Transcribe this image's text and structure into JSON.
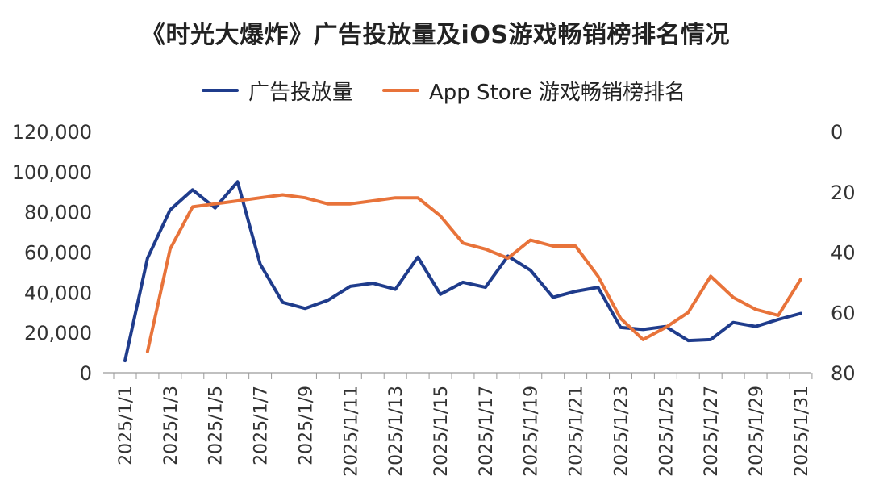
{
  "title": "《时光大爆炸》广告投放量及iOS游戏畅销榜排名情况",
  "legend": [
    {
      "label": "广告投放量",
      "color": "#1F3C8C"
    },
    {
      "label": "App Store 游戏畅销榜排名",
      "color": "#E8733A"
    }
  ],
  "chart_data": {
    "type": "line",
    "title": "《时光大爆炸》广告投放量及iOS游戏畅销榜排名情况",
    "x_labels_shown": [
      "2025/1/1",
      "2025/1/3",
      "2025/1/5",
      "2025/1/7",
      "2025/1/9",
      "2025/1/11",
      "2025/1/13",
      "2025/1/15",
      "2025/1/17",
      "2025/1/19",
      "2025/1/21",
      "2025/1/23",
      "2025/1/25",
      "2025/1/27",
      "2025/1/29",
      "2025/1/31"
    ],
    "y_left": {
      "min": 0,
      "max": 120000,
      "ticks": [
        "120,000",
        "100,000",
        "80,000",
        "60,000",
        "40,000",
        "20,000",
        "0"
      ]
    },
    "y_right": {
      "min": 0,
      "max": 80,
      "inverted": true,
      "ticks": [
        "0",
        "20",
        "40",
        "60",
        "80"
      ]
    },
    "series": [
      {
        "name": "广告投放量",
        "axis": "left",
        "color": "#1F3C8C",
        "values": [
          [
            "2025/1/1",
            6000
          ],
          [
            "2025/1/2",
            57000
          ],
          [
            "2025/1/3",
            81000
          ],
          [
            "2025/1/4",
            91000
          ],
          [
            "2025/1/5",
            82000
          ],
          [
            "2025/1/6",
            95000
          ],
          [
            "2025/1/7",
            54000
          ],
          [
            "2025/1/8",
            35000
          ],
          [
            "2025/1/9",
            32000
          ],
          [
            "2025/1/10",
            36000
          ],
          [
            "2025/1/11",
            43000
          ],
          [
            "2025/1/12",
            44500
          ],
          [
            "2025/1/13",
            41500
          ],
          [
            "2025/1/14",
            57500
          ],
          [
            "2025/1/15",
            39000
          ],
          [
            "2025/1/16",
            45000
          ],
          [
            "2025/1/17",
            42500
          ],
          [
            "2025/1/18",
            58000
          ],
          [
            "2025/1/19",
            51000
          ],
          [
            "2025/1/20",
            37500
          ],
          [
            "2025/1/21",
            40500
          ],
          [
            "2025/1/22",
            42500
          ],
          [
            "2025/1/23",
            22500
          ],
          [
            "2025/1/24",
            21500
          ],
          [
            "2025/1/25",
            23000
          ],
          [
            "2025/1/26",
            16000
          ],
          [
            "2025/1/27",
            16500
          ],
          [
            "2025/1/28",
            25000
          ],
          [
            "2025/1/29",
            23000
          ],
          [
            "2025/1/30",
            26500
          ],
          [
            "2025/1/31",
            29500
          ]
        ]
      },
      {
        "name": "App Store 游戏畅销榜排名",
        "axis": "right",
        "color": "#E8733A",
        "values": [
          [
            "2025/1/2",
            73
          ],
          [
            "2025/1/3",
            39
          ],
          [
            "2025/1/4",
            25
          ],
          [
            "2025/1/5",
            24
          ],
          [
            "2025/1/6",
            23
          ],
          [
            "2025/1/7",
            22
          ],
          [
            "2025/1/8",
            21
          ],
          [
            "2025/1/9",
            22
          ],
          [
            "2025/1/10",
            24
          ],
          [
            "2025/1/11",
            24
          ],
          [
            "2025/1/12",
            23
          ],
          [
            "2025/1/13",
            22
          ],
          [
            "2025/1/14",
            22
          ],
          [
            "2025/1/15",
            28
          ],
          [
            "2025/1/16",
            37
          ],
          [
            "2025/1/17",
            39
          ],
          [
            "2025/1/18",
            42
          ],
          [
            "2025/1/19",
            36
          ],
          [
            "2025/1/20",
            38
          ],
          [
            "2025/1/21",
            38
          ],
          [
            "2025/1/22",
            48
          ],
          [
            "2025/1/23",
            62
          ],
          [
            "2025/1/24",
            69
          ],
          [
            "2025/1/25",
            65
          ],
          [
            "2025/1/26",
            60
          ],
          [
            "2025/1/27",
            48
          ],
          [
            "2025/1/28",
            55
          ],
          [
            "2025/1/29",
            59
          ],
          [
            "2025/1/30",
            61
          ],
          [
            "2025/1/31",
            49
          ]
        ]
      }
    ]
  }
}
